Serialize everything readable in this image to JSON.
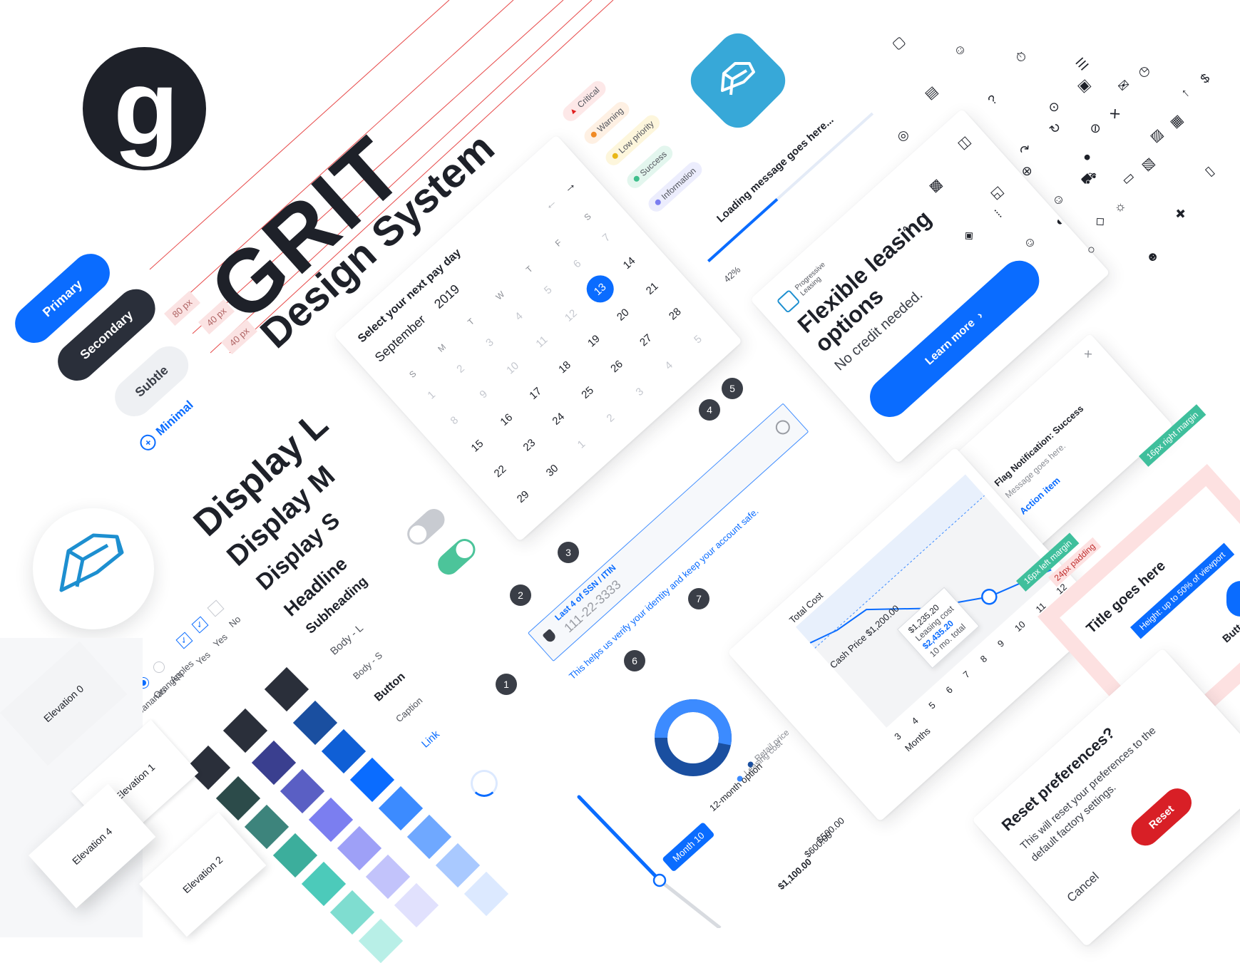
{
  "logo": {
    "glyph": "g",
    "name": "grit-logo"
  },
  "title": {
    "main": "GRIT",
    "sub": "Design System",
    "sizes": [
      "80 px",
      "40 px",
      "40 px"
    ]
  },
  "buttons": {
    "primary": "Primary",
    "secondary": "Secondary",
    "subtle": "Subtle",
    "minimal": "Minimal"
  },
  "typography": [
    "Display L",
    "Display M",
    "Display S",
    "Headline",
    "Subheading",
    "Body - L",
    "Body - S",
    "Button",
    "Caption",
    "Link"
  ],
  "checkboxes": [
    {
      "label": "No",
      "checked": false
    },
    {
      "label": "Yes",
      "checked": true
    },
    {
      "label": "Yes",
      "checked": true
    }
  ],
  "radios": [
    {
      "label": "Apples",
      "checked": false
    },
    {
      "label": "Oranges",
      "checked": true
    },
    {
      "label": "Bananas",
      "checked": false
    }
  ],
  "elevations": [
    "Elevation 0",
    "Elevation 1",
    "Elevation 4",
    "Elevation 2"
  ],
  "statuses": [
    {
      "label": "Critical",
      "color": "#e02020"
    },
    {
      "label": "Warning",
      "color": "#f08a24"
    },
    {
      "label": "Low priority",
      "color": "#e8b717"
    },
    {
      "label": "Success",
      "color": "#3fbf8c"
    },
    {
      "label": "Information",
      "color": "#7b7ef0"
    }
  ],
  "calendar": {
    "title": "Select your next pay day",
    "month": "September",
    "year": "2019",
    "weekdays": [
      "S",
      "M",
      "T",
      "W",
      "T",
      "F",
      "S"
    ],
    "rows": [
      [
        "1",
        "2",
        "3",
        "4",
        "5",
        "6",
        "7"
      ],
      [
        "8",
        "9",
        "10",
        "11",
        "12",
        "13",
        "14"
      ],
      [
        "15",
        "16",
        "17",
        "18",
        "19",
        "20",
        "21"
      ],
      [
        "22",
        "23",
        "24",
        "25",
        "26",
        "27",
        "28"
      ],
      [
        "29",
        "30",
        "1",
        "2",
        "3",
        "4",
        "5"
      ]
    ],
    "selected": "13"
  },
  "loader": {
    "message": "Loading message goes here...",
    "percent": "42%",
    "progress": 0.42
  },
  "promo": {
    "brand_line1": "Progressive",
    "brand_line2": "Leasing",
    "headline_line1": "Flexible leasing",
    "headline_line2": "options",
    "subtext": "No credit needed.",
    "cta": "Learn more"
  },
  "flag": {
    "title": "Flag Notification: Success",
    "message": "Message goes here.",
    "action": "Action item",
    "close": "×"
  },
  "ssn_field": {
    "label": "Last 4 of SSN / ITIN",
    "value": "111-22-3333",
    "helper": "This helps us verify your identity and keep your account safe.",
    "callouts": [
      "1",
      "2",
      "3",
      "4",
      "5",
      "6",
      "7"
    ]
  },
  "lease_chart": {
    "title": "Total Cost",
    "xlabel": "Months",
    "months": [
      "3",
      "4",
      "5",
      "6",
      "7",
      "8",
      "9",
      "10",
      "11",
      "12"
    ],
    "cash_price": "Cash Price $1,200.00",
    "tooltip_retail": "$1,235.20",
    "tooltip_lease_label": "Leasing cost",
    "tooltip_total": "$2,435.20",
    "tooltip_sub": "10 mo. total"
  },
  "donut": {
    "legend": [
      "Retail price",
      "Leasing cost"
    ],
    "option_label": "12-month option",
    "values": [
      "$500.00",
      "$600.00"
    ],
    "total": "$1,100.00",
    "colors": [
      "#1a4fa0",
      "#2f7df0"
    ]
  },
  "slider": {
    "badge": "Month 10"
  },
  "modal_layout": {
    "title": "Title goes here",
    "left_margin": "16px left margin",
    "right_margin": "16px right margin",
    "padding": "24px padding",
    "height": "Height: up to 50% of viewport",
    "button": "Button"
  },
  "dialog": {
    "title": "Reset preferences?",
    "body_line1": "This will reset your preferences to the",
    "body_line2": "default factory settings.",
    "cancel": "Cancel",
    "confirm": "Reset"
  },
  "colors": {
    "primary": "#0a6cff",
    "dark": "#1e2129",
    "blue_ramp": [
      "#1a4fa0",
      "#0f5fd6",
      "#0a6cff",
      "#3c8bff",
      "#6fa8ff",
      "#a9c9ff",
      "#dce9ff"
    ],
    "purple_ramp": [
      "#3a3f8f",
      "#5a5fc4",
      "#7b7ef0",
      "#9ea0f7",
      "#c2c3fb",
      "#e1e1fd"
    ],
    "teal_ramp": [
      "#2c4b4a",
      "#3d847c",
      "#3cae9c",
      "#4ccaba",
      "#7fddd0",
      "#b8efe7"
    ],
    "dark_ramp": [
      "#2a2f3a",
      "#2a2f3a",
      "#2a2f3a"
    ]
  },
  "icons": [
    "frame-icon",
    "person-icon",
    "timer-icon",
    "list-icon",
    "clock-icon",
    "money-icon",
    "chat-icon",
    "arrow-up-icon",
    "wallet-icon",
    "receipt-icon",
    "help-icon",
    "stopwatch-icon",
    "collapse-icon",
    "id-card-icon",
    "block-icon",
    "image-icon",
    "refresh-icon",
    "fingerprint-icon",
    "bag-icon",
    "redo-icon",
    "dot-icon",
    "news-icon",
    "phone-icon",
    "card-icon",
    "globe-icon",
    "truck-icon",
    "contact-icon",
    "briefcase-icon",
    "user-icon",
    "sun-icon",
    "puzzle-icon",
    "box-icon",
    "grid-icon",
    "contrast-icon",
    "pulse-icon",
    "tag-icon",
    "user-check-icon",
    "circle-icon",
    "people-icon"
  ]
}
